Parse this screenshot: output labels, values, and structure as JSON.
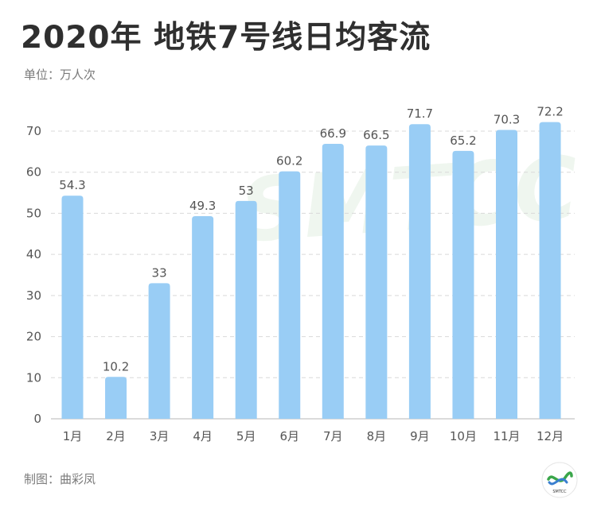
{
  "title": "2020年 地铁7号线日均客流",
  "unit_label": "单位：万人次",
  "credit": "制图：曲彩凤",
  "watermark": "SMTCC",
  "logo_text": "SMTCC",
  "colors": {
    "bar": "#99cdf5",
    "grid": "#d9d9d9",
    "axis": "#cfcfcf",
    "text": "#555555",
    "watermark": "#eef6ee",
    "logo_green": "#3aa64a",
    "logo_blue": "#3a7fd0"
  },
  "chart_data": {
    "type": "bar",
    "title": "2020年 地铁7号线日均客流",
    "ylabel": "单位：万人次",
    "xlabel": "",
    "categories": [
      "1月",
      "2月",
      "3月",
      "4月",
      "5月",
      "6月",
      "7月",
      "8月",
      "9月",
      "10月",
      "11月",
      "12月"
    ],
    "values": [
      54.3,
      10.2,
      33,
      49.3,
      53,
      60.2,
      66.9,
      66.5,
      71.7,
      65.2,
      70.3,
      72.2
    ],
    "value_labels": [
      "54.3",
      "10.2",
      "33",
      "49.3",
      "53",
      "60.2",
      "66.9",
      "66.5",
      "71.7",
      "65.2",
      "70.3",
      "72.2"
    ],
    "ylim": [
      0,
      70
    ],
    "yticks": [
      0,
      10,
      20,
      30,
      40,
      50,
      60,
      70
    ],
    "grid": true,
    "legend": "none"
  }
}
